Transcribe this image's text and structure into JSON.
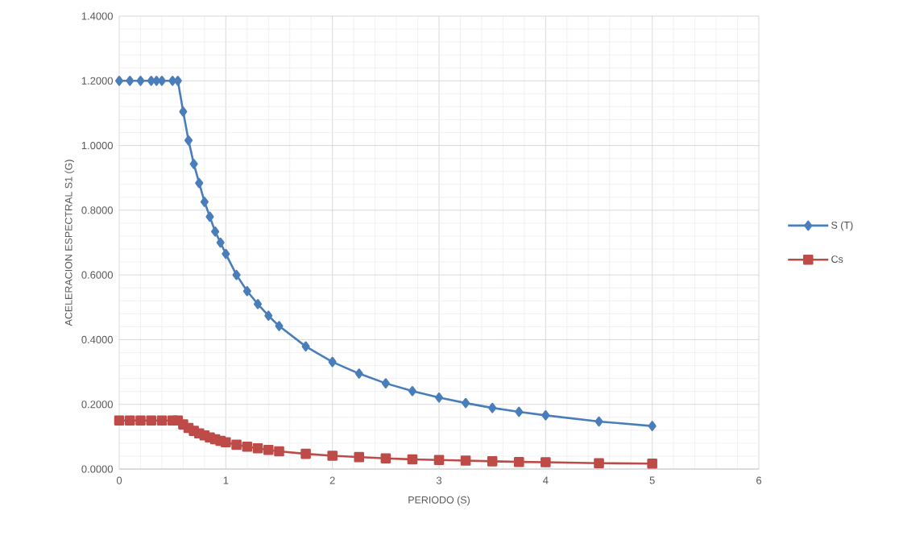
{
  "chart_data": {
    "type": "line",
    "xlabel": "PERIODO (S)",
    "ylabel": "ACELERACION ESPECTRAL S1 (G)",
    "xlim": [
      0,
      6
    ],
    "xticks": [
      0,
      1,
      2,
      3,
      4,
      5,
      6
    ],
    "ylim": [
      0,
      1.4
    ],
    "yticks": [
      {
        "value": 0,
        "label": "0.0000"
      },
      {
        "value": 0.2,
        "label": "0.2000"
      },
      {
        "value": 0.4,
        "label": "0.4000"
      },
      {
        "value": 0.6,
        "label": "0.6000"
      },
      {
        "value": 0.8,
        "label": "0.8000"
      },
      {
        "value": 1.0,
        "label": "1.0000"
      },
      {
        "value": 1.2,
        "label": "1.2000"
      },
      {
        "value": 1.4,
        "label": "1.4000"
      }
    ],
    "grid": true,
    "legend": "right",
    "line_style": "solid",
    "x": [
      0,
      0.1,
      0.2,
      0.3,
      0.35,
      0.4,
      0.5,
      0.55,
      0.6,
      0.65,
      0.7,
      0.75,
      0.8,
      0.85,
      0.9,
      0.95,
      1.0,
      1.1,
      1.2,
      1.3,
      1.4,
      1.5,
      1.75,
      2,
      2.25,
      2.5,
      2.75,
      3,
      3.25,
      3.5,
      3.75,
      4,
      4.5,
      5
    ],
    "series": [
      {
        "name": "S (T)",
        "color": "#4a7ebb",
        "marker": "diamond",
        "values": [
          1.2,
          1.2,
          1.2,
          1.2,
          1.2,
          1.2,
          1.2,
          1.2,
          1.105,
          1.016,
          0.943,
          0.884,
          0.826,
          0.78,
          0.734,
          0.7,
          0.665,
          0.6,
          0.55,
          0.51,
          0.474,
          0.442,
          0.379,
          0.331,
          0.295,
          0.265,
          0.241,
          0.221,
          0.204,
          0.189,
          0.177,
          0.166,
          0.147,
          0.133
        ]
      },
      {
        "name": "Cs",
        "color": "#be4b48",
        "marker": "square",
        "values": [
          0.15,
          0.15,
          0.15,
          0.15,
          null,
          0.15,
          0.15,
          0.15,
          0.138,
          0.127,
          0.118,
          0.11,
          0.104,
          0.098,
          0.092,
          0.087,
          0.083,
          0.075,
          0.069,
          0.064,
          0.059,
          0.055,
          0.047,
          0.041,
          0.037,
          0.033,
          0.03,
          0.028,
          0.026,
          0.024,
          0.022,
          0.021,
          0.018,
          0.017
        ]
      }
    ]
  }
}
